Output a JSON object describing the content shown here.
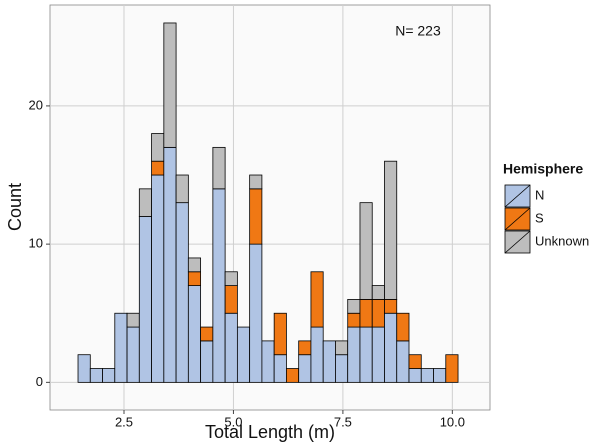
{
  "chart_data": {
    "type": "histogram",
    "annotation": "N= 223",
    "x_label": "Total Length (m)",
    "y_label": "Count",
    "legend_title": "Hemisphere",
    "bins": [
      1.45,
      1.73,
      2.01,
      2.29,
      2.57,
      2.85,
      3.13,
      3.41,
      3.69,
      3.97,
      4.25,
      4.53,
      4.81,
      5.09,
      5.37,
      5.65,
      5.93,
      6.21,
      6.49,
      6.77,
      7.05,
      7.33,
      7.61,
      7.89,
      8.17,
      8.45,
      8.73,
      9.01,
      9.29,
      9.57,
      9.85,
      10.13
    ],
    "series": [
      {
        "name": "N",
        "color": "#b0c4e4",
        "values": [
          2,
          1,
          1,
          5,
          4,
          12,
          15,
          17,
          13,
          7,
          3,
          14,
          5,
          4,
          10,
          3,
          2,
          0,
          2,
          4,
          3,
          2,
          4,
          4,
          4,
          5,
          3,
          1,
          1,
          1,
          0
        ]
      },
      {
        "name": "S",
        "color": "#f07814",
        "values": [
          0,
          0,
          0,
          0,
          0,
          0,
          1,
          0,
          0,
          1,
          1,
          0,
          2,
          0,
          4,
          0,
          3,
          1,
          1,
          4,
          0,
          0,
          1,
          2,
          2,
          1,
          2,
          1,
          0,
          0,
          2
        ]
      },
      {
        "name": "Unknown",
        "color": "#bdbdbd",
        "values": [
          0,
          0,
          0,
          0,
          1,
          2,
          2,
          9,
          2,
          1,
          0,
          3,
          1,
          0,
          1,
          0,
          0,
          0,
          0,
          0,
          0,
          1,
          1,
          7,
          1,
          10,
          0,
          0,
          0,
          0,
          0
        ]
      }
    ],
    "stacked": true,
    "xlim": [
      0.81,
      10.86
    ],
    "ylim": [
      -2.0,
      27.3
    ],
    "xticks": [
      2.5,
      {
        "value": 5,
        "label": "5.0"
      },
      7.5,
      {
        "value": 10,
        "label": "10.0"
      }
    ],
    "yticks": [
      0,
      10,
      20
    ],
    "grid": true,
    "legend_position": "right"
  }
}
